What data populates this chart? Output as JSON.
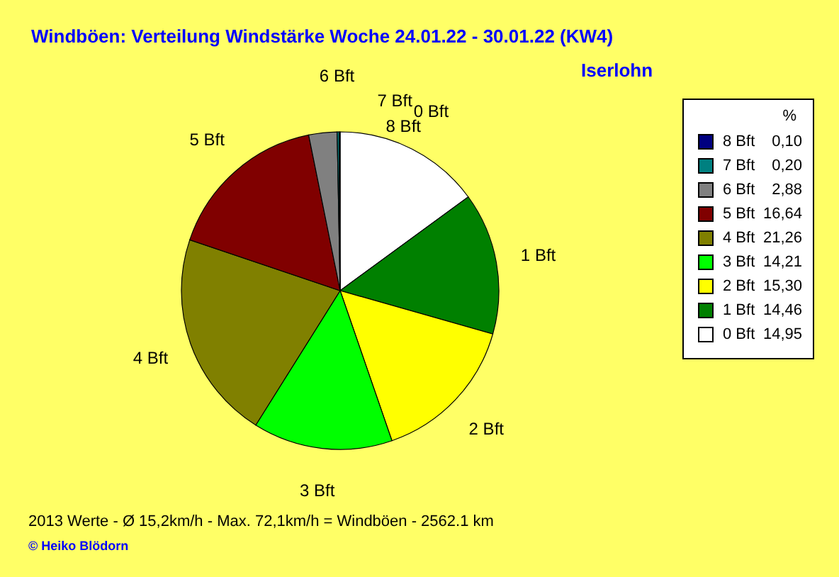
{
  "chart_data": {
    "type": "pie",
    "title": "Windböen: Verteilung Windstärke  Woche 24.01.22 - 30.01.22 (KW4)",
    "subtitle": "Iserlohn",
    "categories": [
      "0 Bft",
      "1 Bft",
      "2 Bft",
      "3 Bft",
      "4 Bft",
      "5 Bft",
      "6 Bft",
      "7 Bft",
      "8 Bft"
    ],
    "values": [
      14.95,
      14.46,
      15.3,
      14.21,
      21.26,
      16.64,
      2.88,
      0.2,
      0.1
    ],
    "value_labels": [
      "14,95",
      "14,46",
      "15,30",
      "14,21",
      "21,26",
      "16,64",
      "2,88",
      "0,20",
      "0,10"
    ],
    "colors": [
      "#ffffff",
      "#008000",
      "#ffff00",
      "#00ff00",
      "#808000",
      "#800000",
      "#808080",
      "#008080",
      "#000080"
    ],
    "legend_title": "%",
    "legend": "top right",
    "annotations": [
      "2013 Werte   -   Ø 15,2km/h  -  Max. 72,1km/h = Windböen   -   2562.1 km",
      "© Heiko Blödorn"
    ]
  }
}
